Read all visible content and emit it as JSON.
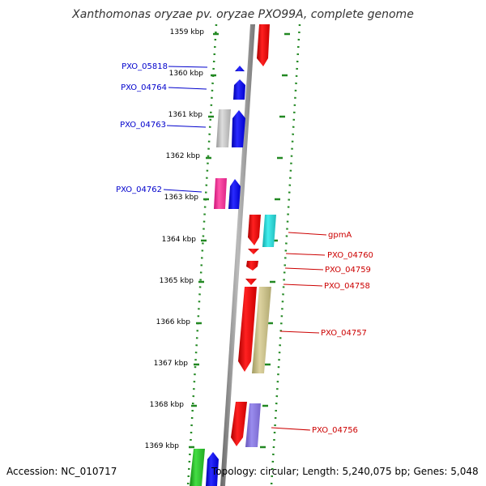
{
  "title": "Xanthomonas oryzae pv. oryzae PXO99A, complete genome",
  "footer": {
    "accession": "Accession: NC_010717",
    "summary": "Topology: circular; Length: 5,240,075 bp; Genes: 5,048"
  },
  "ticks": [
    "1359 kbp",
    "1360 kbp",
    "1361 kbp",
    "1362 kbp",
    "1363 kbp",
    "1364 kbp",
    "1365 kbp",
    "1366 kbp",
    "1367 kbp",
    "1368 kbp",
    "1369 kbp"
  ],
  "left_labels": [
    "PXO_05818",
    "PXO_04764",
    "PXO_04763",
    "PXO_04762"
  ],
  "right_labels": [
    "gpmA",
    "PXO_04760",
    "PXO_04759",
    "PXO_04758",
    "PXO_04757",
    "PXO_04756"
  ],
  "colors": {
    "forward_strand": "#ee1111",
    "reverse_strand": "#1111ee",
    "backbone": "#888888",
    "dotted_border": "#228822",
    "left_label": "#0000cc",
    "right_label": "#cc0000"
  }
}
